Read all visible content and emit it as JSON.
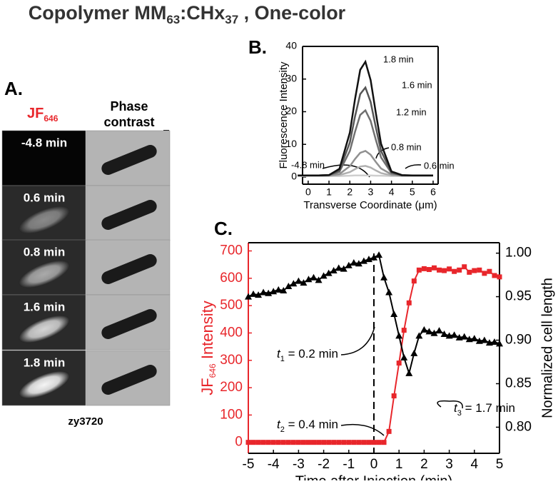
{
  "title": [
    "Copolymer MM",
    "63",
    ":CHx",
    "37",
    " , One-color"
  ],
  "panel_a": {
    "label": "A.",
    "channel_header": [
      "JF",
      "646"
    ],
    "phase_header": [
      "Phase",
      "contrast"
    ],
    "rows": [
      "-4.8 min",
      "0.6 min",
      "0.8 min",
      "1.6 min",
      "1.8 min"
    ],
    "strain": "zy3720"
  },
  "chart_data": [
    {
      "type": "line",
      "panel_label": "B.",
      "xlabel": "Transverse Coordinate (μm)",
      "ylabel": "Fluorescence Intensity",
      "x": [
        -0.5,
        0,
        0.5,
        1,
        1.5,
        2,
        2.25,
        2.5,
        2.75,
        3,
        3.25,
        3.5,
        4,
        4.5,
        5,
        5.5,
        6
      ],
      "xlim": [
        -0.27,
        6.24
      ],
      "ylim": [
        -2.2,
        40
      ],
      "xticks": [
        0,
        1,
        2,
        3,
        4,
        5,
        6
      ],
      "yticks": [
        0,
        10,
        20,
        30,
        40
      ],
      "series": [
        {
          "name": "-4.8 min",
          "color": "#cfcfcf",
          "values": [
            0.3,
            0.3,
            0.3,
            0.3,
            0.3,
            0.4,
            0.5,
            0.5,
            0.5,
            0.5,
            0.4,
            0.4,
            0.3,
            0.3,
            0.3,
            0.3,
            0.3
          ]
        },
        {
          "name": "0.6 min",
          "color": "#b0b0b0",
          "values": [
            0.4,
            0.4,
            0.4,
            0.4,
            0.6,
            1.5,
            2.4,
            3.2,
            3.4,
            2.9,
            2,
            1.2,
            0.5,
            0.4,
            0.4,
            0.4,
            0.4
          ]
        },
        {
          "name": "0.8 min",
          "color": "#909090",
          "values": [
            0.5,
            0.5,
            0.5,
            0.5,
            0.9,
            3.3,
            5.5,
            7.4,
            8,
            6.8,
            4.6,
            2.6,
            0.8,
            0.5,
            0.5,
            0.5,
            0.5
          ]
        },
        {
          "name": "1.2 min",
          "color": "#707070",
          "values": [
            0.5,
            0.5,
            0.5,
            0.6,
            1.6,
            8,
            13.8,
            19,
            20.4,
            17.2,
            11.4,
            6,
            1.2,
            0.5,
            0.5,
            0.5,
            0.5
          ]
        },
        {
          "name": "1.6 min",
          "color": "#555555",
          "values": [
            0.5,
            0.5,
            0.5,
            0.6,
            2,
            10.6,
            18.5,
            25.4,
            27.4,
            23,
            15.2,
            8,
            1.4,
            0.5,
            0.5,
            0.5,
            0.5
          ]
        },
        {
          "name": "1.8 min",
          "color": "#111111",
          "values": [
            0.5,
            0.5,
            0.5,
            0.6,
            2.5,
            13.6,
            23.8,
            32.8,
            35.3,
            29.7,
            19.6,
            10.2,
            1.7,
            0.6,
            0.5,
            0.5,
            0.5
          ]
        }
      ]
    },
    {
      "type": "line",
      "panel_label": "C.",
      "xlabel": "Time after Injection (min)",
      "ylabel": [
        "JF",
        "646",
        "  Intensity"
      ],
      "y2label": "Normalized cell length",
      "y_axis_color": "#e8262b",
      "x": [
        -5,
        -4.8,
        -4.6,
        -4.4,
        -4.2,
        -4,
        -3.8,
        -3.6,
        -3.4,
        -3.2,
        -3,
        -2.8,
        -2.6,
        -2.4,
        -2.2,
        -2,
        -1.8,
        -1.6,
        -1.4,
        -1.2,
        -1,
        -0.8,
        -0.6,
        -0.4,
        -0.2,
        0,
        0.2,
        0.4,
        0.6,
        0.8,
        1,
        1.2,
        1.4,
        1.6,
        1.8,
        2,
        2.2,
        2.4,
        2.6,
        2.8,
        3,
        3.2,
        3.4,
        3.6,
        3.8,
        4,
        4.2,
        4.4,
        4.6,
        4.8,
        5
      ],
      "xlim": [
        -5,
        5
      ],
      "ylim": [
        -40,
        730
      ],
      "y2lim": [
        0.77,
        1.012
      ],
      "xticks": [
        -5,
        -4,
        -3,
        -2,
        -1,
        0,
        1,
        2,
        3,
        4,
        5
      ],
      "yticks": [
        0,
        100,
        200,
        300,
        400,
        500,
        600,
        700
      ],
      "y2ticks": [
        {
          "value": 0.8,
          "label": "0.80"
        },
        {
          "value": 0.85,
          "label": "0.85"
        },
        {
          "value": 0.9,
          "label": "0.90"
        },
        {
          "value": 0.95,
          "label": "0.95"
        },
        {
          "value": 1,
          "label": "1.00"
        }
      ],
      "vline": 0,
      "annotations": [
        {
          "var": "t",
          "sub": "1",
          "text": " = 0.2 min"
        },
        {
          "var": "t",
          "sub": "2",
          "text": " = 0.4 min"
        },
        {
          "var": "t",
          "sub": "3",
          "text": " = 1.7 min"
        }
      ],
      "series": [
        {
          "name": "JF646 Intensity",
          "color": "#e8262b",
          "marker": "square",
          "values": [
            0,
            0,
            0,
            0,
            0,
            0,
            0,
            0,
            0,
            0,
            0,
            0,
            0,
            0,
            0,
            0,
            0,
            0,
            0,
            0,
            0,
            0,
            0,
            0,
            0,
            0,
            0,
            0,
            40,
            170,
            290,
            410,
            510,
            590,
            630,
            635,
            632,
            638,
            630,
            628,
            634,
            625,
            630,
            642,
            622,
            628,
            630,
            618,
            625,
            610,
            605
          ]
        },
        {
          "name": "Normalized cell length",
          "color": "#000000",
          "marker": "triangle",
          "axis": "y2",
          "values": [
            0.95,
            0.953,
            0.952,
            0.955,
            0.954,
            0.956,
            0.958,
            0.957,
            0.962,
            0.965,
            0.968,
            0.966,
            0.97,
            0.972,
            0.969,
            0.974,
            0.977,
            0.98,
            0.983,
            0.982,
            0.986,
            0.989,
            0.988,
            0.991,
            0.993,
            0.995,
            0.998,
            0.972,
            0.955,
            0.93,
            0.905,
            0.88,
            0.862,
            0.885,
            0.905,
            0.912,
            0.91,
            0.908,
            0.911,
            0.907,
            0.905,
            0.906,
            0.903,
            0.904,
            0.901,
            0.902,
            0.899,
            0.9,
            0.897,
            0.898,
            0.896
          ]
        }
      ]
    }
  ]
}
